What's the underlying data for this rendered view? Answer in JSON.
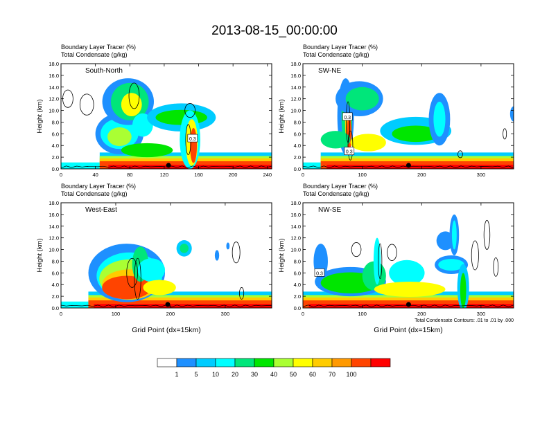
{
  "page": {
    "title": "2013-08-15_00:00:00"
  },
  "chart_data": [
    {
      "type": "heatmap",
      "panel_label": "South-North",
      "title_line1": "Boundary Layer Tracer   (%)",
      "title_line2": "Total Condensate   (g/kg)",
      "ylabel": "Height (km)",
      "xlabel": "",
      "xlim": [
        0,
        245
      ],
      "xticks": [
        0,
        40,
        80,
        120,
        160,
        200,
        240
      ],
      "ylim": [
        0,
        18
      ],
      "yticks": [
        "0.0",
        "2.0",
        "4.0",
        "6.0",
        "8.0",
        "10.0",
        "12.0",
        "14.0",
        "16.0",
        "18.0"
      ],
      "contour_labels": [
        "0.3"
      ],
      "surface_marker_x": 125
    },
    {
      "type": "heatmap",
      "panel_label": "SW-NE",
      "title_line1": "Boundary Layer Tracer   (%)",
      "title_line2": "Total Condensate   (g/kg)",
      "ylabel": "Height (km)",
      "xlabel": "",
      "xlim": [
        0,
        355
      ],
      "xticks": [
        0,
        100,
        200,
        300
      ],
      "ylim": [
        0,
        18
      ],
      "yticks": [
        "0.0",
        "2.0",
        "4.0",
        "6.0",
        "8.0",
        "10.0",
        "12.0",
        "14.0",
        "16.0",
        "18.0"
      ],
      "contour_labels": [
        "0.3",
        "0.3"
      ],
      "surface_marker_x": 178
    },
    {
      "type": "heatmap",
      "panel_label": "West-East",
      "title_line1": "Boundary Layer Tracer   (%)",
      "title_line2": "Total Condensate   (g/kg)",
      "ylabel": "Height (km)",
      "xlabel": "Grid Point (dx=15km)",
      "xlim": [
        0,
        385
      ],
      "xticks": [
        0,
        100,
        200,
        300
      ],
      "ylim": [
        0,
        18
      ],
      "yticks": [
        "0.0",
        "2.0",
        "4.0",
        "6.0",
        "8.0",
        "10.0",
        "12.0",
        "14.0",
        "16.0",
        "18.0"
      ],
      "contour_labels": [],
      "surface_marker_x": 195
    },
    {
      "type": "heatmap",
      "panel_label": "NW-SE",
      "title_line1": "Boundary Layer Tracer   (%)",
      "title_line2": "Total Condensate   (g/kg)",
      "ylabel": "Height (km)",
      "xlabel": "Grid Point (dx=15km)",
      "xlim": [
        0,
        355
      ],
      "xticks": [
        0,
        100,
        200,
        300
      ],
      "ylim": [
        0,
        18
      ],
      "yticks": [
        "0.0",
        "2.0",
        "4.0",
        "6.0",
        "8.0",
        "10.0",
        "12.0",
        "14.0",
        "16.0",
        "18.0"
      ],
      "contour_labels": [
        "0.3"
      ],
      "surface_marker_x": 178,
      "note": "Total Condensate Contours: .01 to .01 by .000"
    }
  ],
  "colorbar": {
    "levels": [
      "1",
      "5",
      "10",
      "20",
      "30",
      "40",
      "50",
      "60",
      "70",
      "100"
    ],
    "colors": [
      "#ffffff",
      "#1e90ff",
      "#00ccff",
      "#00ffff",
      "#00e67a",
      "#00e600",
      "#aaff33",
      "#ffff00",
      "#ffcc00",
      "#ff9900",
      "#ff4400",
      "#ff0000"
    ]
  }
}
